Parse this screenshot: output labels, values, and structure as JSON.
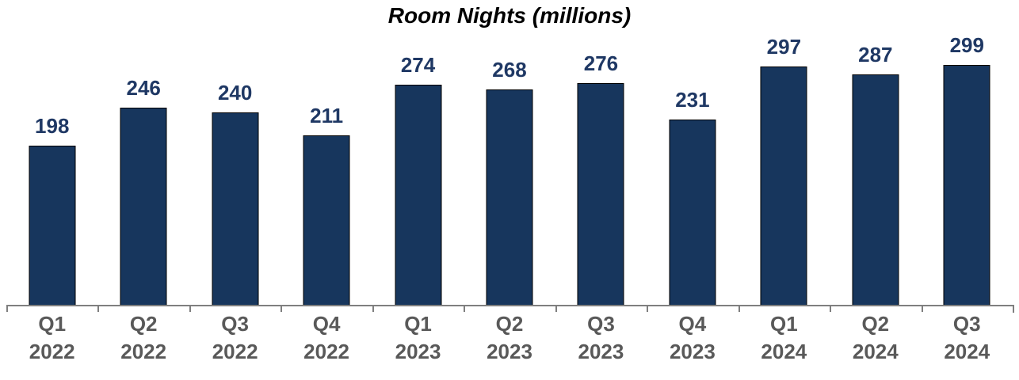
{
  "title": "Room Nights (millions)",
  "colors": {
    "background": "#FFFFFF",
    "bar_fill": "#17365D",
    "bar_border": "#000000",
    "value_label": "#1F3864",
    "axis_line": "#7F7F7F",
    "axis_label": "#595959",
    "title_text": "#000000"
  },
  "chart_data": {
    "type": "bar",
    "title": "Room Nights (millions)",
    "categories": [
      "Q1 2022",
      "Q2 2022",
      "Q3 2022",
      "Q4 2022",
      "Q1 2023",
      "Q2 2023",
      "Q3 2023",
      "Q4 2023",
      "Q1 2024",
      "Q2 2024",
      "Q3 2024"
    ],
    "values": [
      198,
      246,
      240,
      211,
      274,
      268,
      276,
      231,
      297,
      287,
      299
    ],
    "xlabel": "",
    "ylabel": "",
    "ylim": [
      0,
      360
    ],
    "grid": false,
    "legend": false,
    "data_labels": true,
    "axis_ticks": "category-boundaries"
  }
}
